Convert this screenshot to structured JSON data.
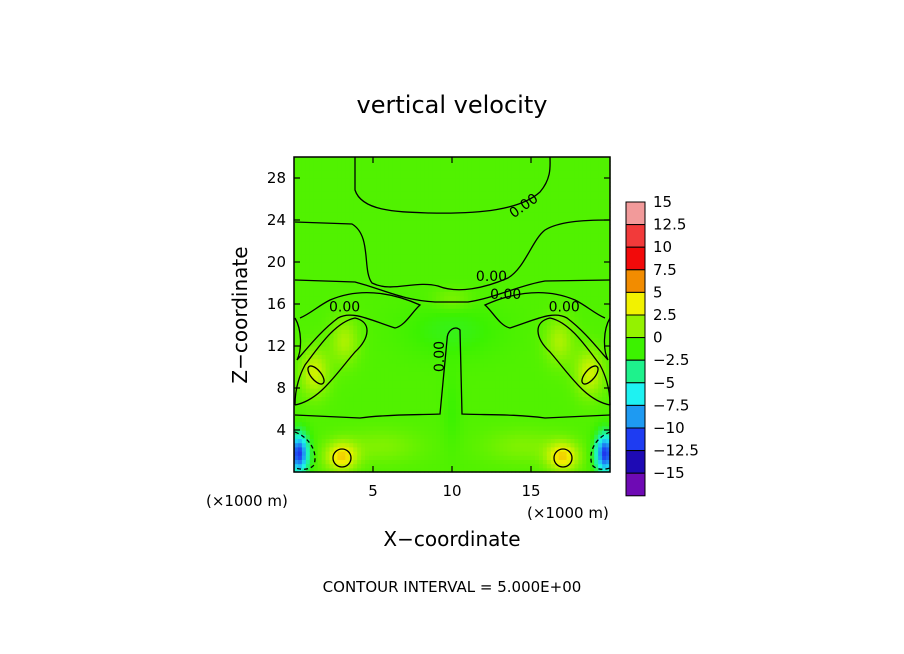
{
  "chart_data": {
    "type": "heatmap",
    "title": "vertical velocity",
    "xlabel": "X−coordinate",
    "ylabel": "Z−coordinate",
    "x_unit_left": "(×1000 m)",
    "x_unit_right": "(×1000 m)",
    "footer": "CONTOUR INTERVAL = 5.000E+00",
    "xlim": [
      0,
      20
    ],
    "ylim": [
      0,
      30
    ],
    "x_ticks": [
      5,
      10,
      15
    ],
    "x_tick_labels": [
      "5",
      "10",
      "15"
    ],
    "y_ticks": [
      4,
      8,
      12,
      16,
      20,
      24,
      28
    ],
    "y_tick_labels": [
      "4",
      "8",
      "12",
      "16",
      "20",
      "24",
      "28"
    ],
    "contour_labels": [
      {
        "text": "0.00",
        "x": 14.7,
        "y": 25.0
      },
      {
        "text": "0.00",
        "x": 12.5,
        "y": 18.2
      },
      {
        "text": "0.00",
        "x": 13.4,
        "y": 16.5
      },
      {
        "text": "0.00",
        "x": 3.2,
        "y": 15.3
      },
      {
        "text": "0.00",
        "x": 17.1,
        "y": 15.3
      },
      {
        "text": "0.00",
        "x": 9.5,
        "y": 11.0
      }
    ],
    "colorbar": {
      "levels": [
        15,
        12.5,
        10,
        7.5,
        5,
        2.5,
        0,
        -2.5,
        -5,
        -7.5,
        -10,
        -12.5,
        -15
      ],
      "labels": [
        "15",
        "12.5",
        "10",
        "7.5",
        "5",
        "2.5",
        "0",
        "−2.5",
        "−5",
        "−7.5",
        "−10",
        "−12.5",
        "−15"
      ],
      "colors": [
        "#f29a9a",
        "#f23a3a",
        "#f20a0a",
        "#f28c00",
        "#f2f200",
        "#94f200",
        "#3cf200",
        "#1ef28c",
        "#1ef2f2",
        "#1e9af2",
        "#1e3cf2",
        "#1e0ab4",
        "#6e0ab4"
      ]
    },
    "field": {
      "background_value": 0.6,
      "features": [
        {
          "x": 3.0,
          "y": 1.5,
          "sx": 1.0,
          "sy": 1.4,
          "amp": 5.0
        },
        {
          "x": 17.0,
          "y": 1.5,
          "sx": 1.0,
          "sy": 1.4,
          "amp": 5.0
        },
        {
          "x": 0.3,
          "y": 1.8,
          "sx": 0.6,
          "sy": 1.8,
          "amp": -11.0
        },
        {
          "x": 19.7,
          "y": 1.8,
          "sx": 0.6,
          "sy": 1.8,
          "amp": -11.0
        },
        {
          "x": 1.3,
          "y": 9.5,
          "sx": 0.9,
          "sy": 2.2,
          "amp": 3.5
        },
        {
          "x": 18.7,
          "y": 9.5,
          "sx": 0.9,
          "sy": 2.2,
          "amp": 3.5
        },
        {
          "x": 3.2,
          "y": 12.5,
          "sx": 0.9,
          "sy": 2.2,
          "amp": 2.5
        },
        {
          "x": 16.8,
          "y": 12.5,
          "sx": 0.9,
          "sy": 2.2,
          "amp": 2.5
        },
        {
          "x": 5.5,
          "y": 2.5,
          "sx": 2.5,
          "sy": 1.6,
          "amp": 1.3
        },
        {
          "x": 14.5,
          "y": 2.5,
          "sx": 2.5,
          "sy": 1.6,
          "amp": 1.3
        },
        {
          "x": 10.0,
          "y": 13.5,
          "sx": 3.0,
          "sy": 2.5,
          "amp": -1.0
        },
        {
          "x": 10.0,
          "y": 16.5,
          "sx": 1.2,
          "sy": 1.0,
          "amp": 1.3
        },
        {
          "x": 10.0,
          "y": 6.0,
          "sx": 0.6,
          "sy": 4.0,
          "amp": -0.6
        }
      ]
    }
  }
}
